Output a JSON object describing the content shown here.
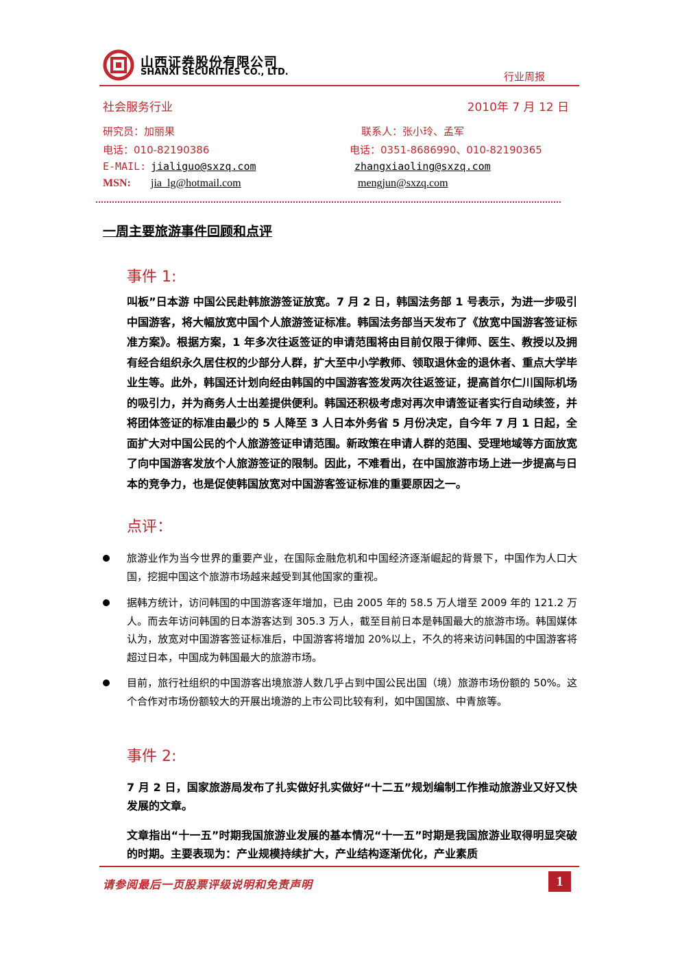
{
  "header": {
    "company_cn": "山西证券股份有限公司",
    "company_en": "SHANXI SECURITIES CO., LTD.",
    "report_type": "行业周报"
  },
  "info": {
    "industry": "社会服务行业",
    "date": "2010年 7 月 12 日",
    "researcher": "研究员：加丽果",
    "contact": "联系人：张小玲、孟军",
    "phone_left": "电话：010-82190386",
    "phone_right": "电话：0351-8686990、010-82190365",
    "email_label": "E-MAIL:",
    "email_left": "jialiguo@sxzq.com",
    "email_right": "zhangxiaoling@sxzq.com",
    "msn_label": "MSN:",
    "msn_left": "jia_lg@hotmail.com",
    "msn_right": "mengjun@sxzq.com"
  },
  "section_title": "一周主要旅游事件回顾和点评",
  "event1": {
    "heading": "事件 1:",
    "paragraph": "叫板”日本游 中国公民赴韩旅游签证放宽。7 月 2 日，韩国法务部 1 号表示，为进一步吸引中国游客，将大幅放宽中国个人旅游签证标准。韩国法务部当天发布了《放宽中国游客签证标准方案》。根据方案，1 年多次往返签证的申请范围将由目前仅限于律师、医生、教授以及拥有经合组织永久居住权的少部分人群，扩大至中小学教师、领取退休金的退休者、重点大学毕业生等。此外，韩国还计划向经由韩国的中国游客签发两次往返签证，提高首尔仁川国际机场的吸引力，并为商务人士出差提供便利。韩国还积极考虑对再次申请签证者实行自动续签，并将团体签证的标准由最少的 5 人降至 3 人日本外务省 5 月份决定，自今年 7 月 1 日起，全面扩大对中国公民的个人旅游签证申请范围。新政策在申请人群的范围、受理地域等方面放宽了向中国游客发放个人旅游签证的限制。因此，不难看出，在中国旅游市场上进一步提高与日本的竞争力，也是促使韩国放宽对中国游客签证标准的重要原因之一。"
  },
  "comment": {
    "heading": "点评：",
    "bullets": [
      "旅游业作为当今世界的重要产业，在国际金融危机和中国经济逐渐崛起的背景下，中国作为人口大国，挖掘中国这个旅游市场越来越受到其他国家的重视。",
      "据韩方统计，访问韩国的中国游客逐年增加，已由 2005 年的 58.5 万人增至 2009 年的 121.2 万人。而去年访问韩国的日本游客达到 305.3 万人，截至目前日本是韩国最大的旅游市场。韩国媒体认为，放宽对中国游客签证标准后，中国游客将增加 20%以上，不久的将来访问韩国的中国游客将超过日本，中国成为韩国最大的旅游市场。",
      "目前，旅行社组织的中国游客出境旅游人数几乎占到中国公民出国（境）旅游市场份额的 50%。这个合作对市场份额较大的开展出境游的上市公司比较有利，如中国国旅、中青旅等。"
    ]
  },
  "event2": {
    "heading": "事件 2:",
    "paragraphs": [
      "7 月 2 日，国家旅游局发布了扎实做好扎实做好“十二五”规划编制工作推动旅游业又好又快发展的文章。",
      "文章指出“十一五”时期我国旅游业发展的基本情况“十一五”时期是我国旅游业取得明显突破的时期。主要表现为：产业规模持续扩大，产业结构逐渐优化，产业素质"
    ]
  },
  "footer": {
    "disclaimer": "请参阅最后一页股票评级说明和免责声明",
    "page": "1"
  }
}
